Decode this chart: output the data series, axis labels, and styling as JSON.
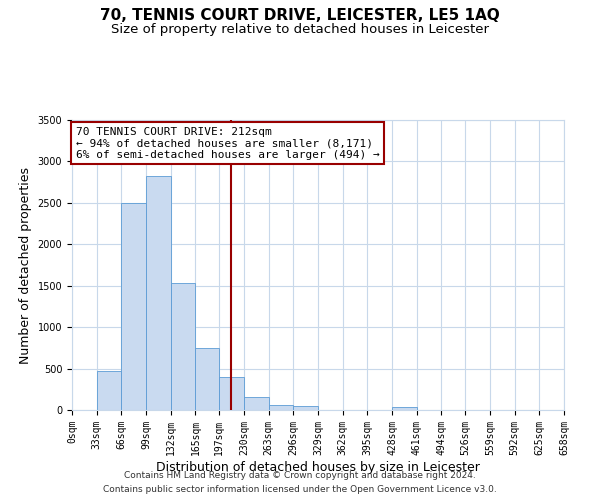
{
  "title": "70, TENNIS COURT DRIVE, LEICESTER, LE5 1AQ",
  "subtitle": "Size of property relative to detached houses in Leicester",
  "xlabel": "Distribution of detached houses by size in Leicester",
  "ylabel": "Number of detached properties",
  "bin_edges": [
    0,
    33,
    66,
    99,
    132,
    165,
    197,
    230,
    263,
    296,
    329,
    362,
    395,
    428,
    461,
    494,
    526,
    559,
    592,
    625,
    658
  ],
  "bin_labels": [
    "0sqm",
    "33sqm",
    "66sqm",
    "99sqm",
    "132sqm",
    "165sqm",
    "197sqm",
    "230sqm",
    "263sqm",
    "296sqm",
    "329sqm",
    "362sqm",
    "395sqm",
    "428sqm",
    "461sqm",
    "494sqm",
    "526sqm",
    "559sqm",
    "592sqm",
    "625sqm",
    "658sqm"
  ],
  "bar_heights": [
    5,
    475,
    2500,
    2820,
    1530,
    750,
    400,
    155,
    65,
    50,
    0,
    0,
    0,
    35,
    0,
    0,
    0,
    0,
    0,
    0
  ],
  "bar_color": "#c9daf0",
  "bar_edge_color": "#5b9bd5",
  "vline_x": 212,
  "vline_color": "#990000",
  "annotation_line1": "70 TENNIS COURT DRIVE: 212sqm",
  "annotation_line2": "← 94% of detached houses are smaller (8,171)",
  "annotation_line3": "6% of semi-detached houses are larger (494) →",
  "annotation_box_color": "#990000",
  "ylim": [
    0,
    3500
  ],
  "yticks": [
    0,
    500,
    1000,
    1500,
    2000,
    2500,
    3000,
    3500
  ],
  "footer_line1": "Contains HM Land Registry data © Crown copyright and database right 2024.",
  "footer_line2": "Contains public sector information licensed under the Open Government Licence v3.0.",
  "background_color": "#ffffff",
  "grid_color": "#c8d8ea",
  "title_fontsize": 11,
  "subtitle_fontsize": 9.5,
  "axis_label_fontsize": 9,
  "tick_fontsize": 7,
  "annotation_fontsize": 8,
  "footer_fontsize": 6.5
}
